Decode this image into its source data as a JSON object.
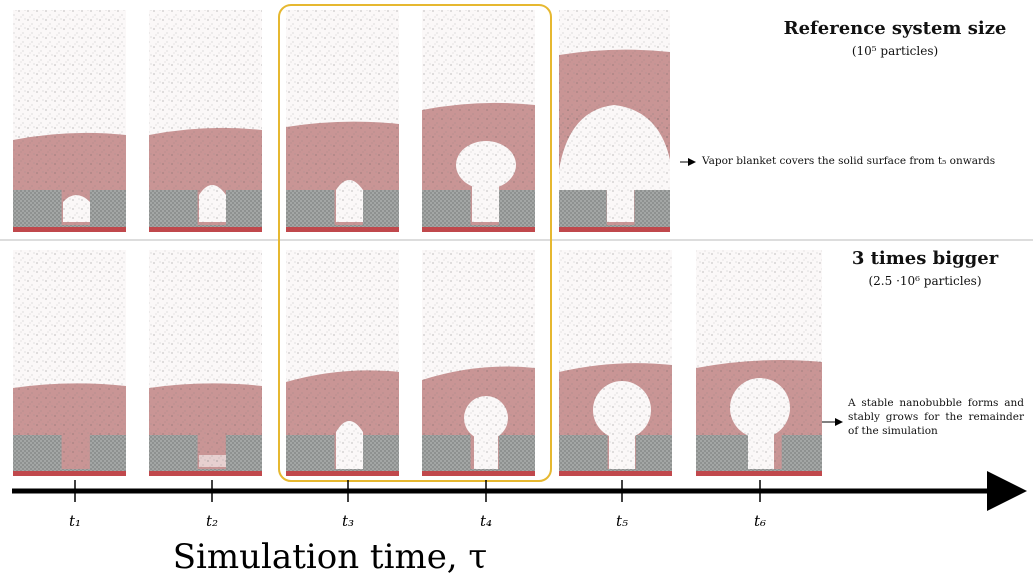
{
  "top_row": {
    "title": "Reference system size",
    "subtitle": "(10⁵ particles)",
    "note": "Vapor blanket covers the solid surface from t₅ onwards"
  },
  "bottom_row": {
    "title": "3 times bigger",
    "subtitle": "(2.5 ·10⁶ particles)",
    "note": "A stable nanobubble forms and stably grows for the remainder of the simulation"
  },
  "time_axis": {
    "ticks": [
      "t₁",
      "t₂",
      "t₃",
      "t₄",
      "t₅",
      "t₆"
    ],
    "label": "Simulation time, τ"
  }
}
